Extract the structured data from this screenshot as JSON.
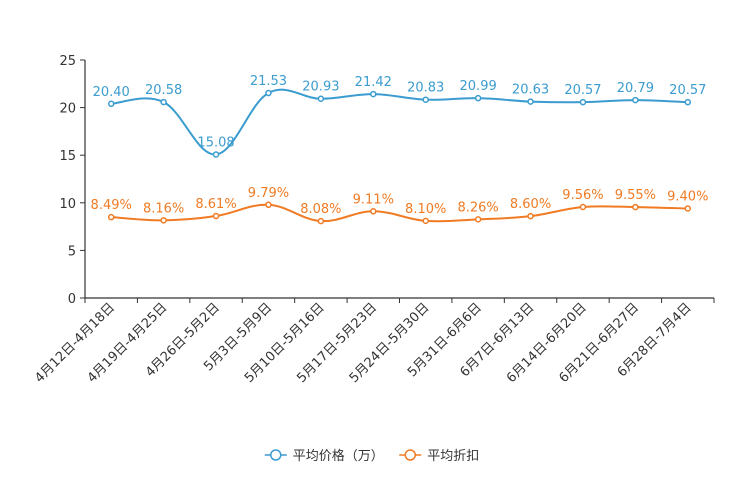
{
  "chart_data": {
    "type": "line",
    "title": "",
    "xlabel": "",
    "ylabel": "",
    "ylim": [
      0,
      25
    ],
    "yticks": [
      0,
      5,
      10,
      15,
      20,
      25
    ],
    "grid": false,
    "legend_position": "bottom",
    "categories": [
      "4月12日-4月18日",
      "4月19日-4月25日",
      "4月26日-5月2日",
      "5月3日-5月9日",
      "5月10日-5月16日",
      "5月17日-5月23日",
      "5月24日-5月30日",
      "5月31日-6月6日",
      "6月7日-6月13日",
      "6月14日-6月20日",
      "6月21日-6月27日",
      "6月28日-7月4日"
    ],
    "series": [
      {
        "name": "平均价格（万）",
        "color": "#3b9ccf",
        "values": [
          20.4,
          20.58,
          15.08,
          21.53,
          20.93,
          21.42,
          20.83,
          20.99,
          20.63,
          20.57,
          20.79,
          20.57
        ],
        "labels": [
          "20.40",
          "20.58",
          "15.08",
          "21.53",
          "20.93",
          "21.42",
          "20.83",
          "20.99",
          "20.63",
          "20.57",
          "20.79",
          "20.57"
        ]
      },
      {
        "name": "平均折扣",
        "color": "#f07b24",
        "values": [
          8.49,
          8.16,
          8.61,
          9.79,
          8.08,
          9.11,
          8.1,
          8.26,
          8.6,
          9.56,
          9.55,
          9.4
        ],
        "labels": [
          "8.49%",
          "8.16%",
          "8.61%",
          "9.79%",
          "8.08%",
          "9.11%",
          "8.10%",
          "8.26%",
          "8.60%",
          "9.56%",
          "9.55%",
          "9.40%"
        ]
      }
    ]
  }
}
